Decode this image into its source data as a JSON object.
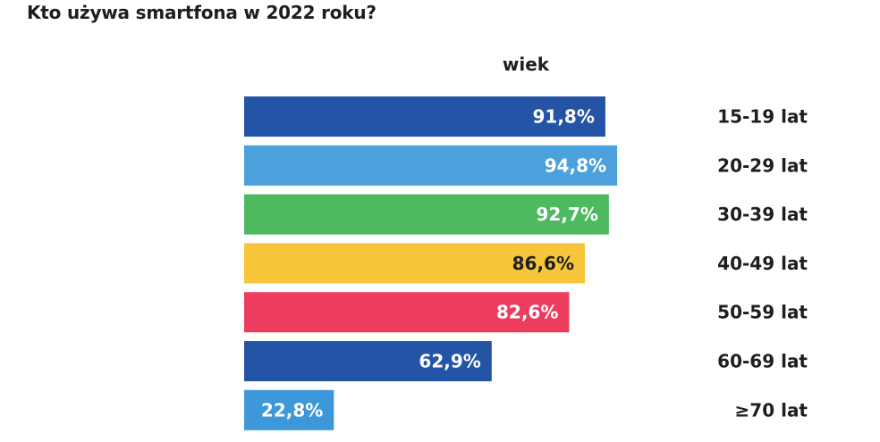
{
  "title": "Kto używa smartfona w 2022 roku?",
  "chart_data": {
    "type": "bar",
    "orientation": "horizontal",
    "title": "Kto używa smartfona w 2022 roku?",
    "group_label": "wiek",
    "categories": [
      "15-19 lat",
      "20-29 lat",
      "30-39 lat",
      "40-49 lat",
      "50-59 lat",
      "60-69 lat",
      "≥70 lat"
    ],
    "values": [
      91.8,
      94.8,
      92.7,
      86.6,
      82.6,
      62.9,
      22.8
    ],
    "value_labels": [
      "91,8%",
      "94,8%",
      "92,7%",
      "86,6%",
      "82,6%",
      "62,9%",
      "22,8%"
    ],
    "bar_colors": [
      "#2454a6",
      "#4ba1dc",
      "#4dba60",
      "#f5c53a",
      "#ee3c5e",
      "#2454a6",
      "#3d97d8"
    ],
    "label_colors": [
      "#ffffff",
      "#ffffff",
      "#ffffff",
      "#1e1e1e",
      "#ffffff",
      "#ffffff",
      "#ffffff"
    ],
    "xlim": [
      0,
      100
    ],
    "grid": false,
    "legend": "none"
  }
}
